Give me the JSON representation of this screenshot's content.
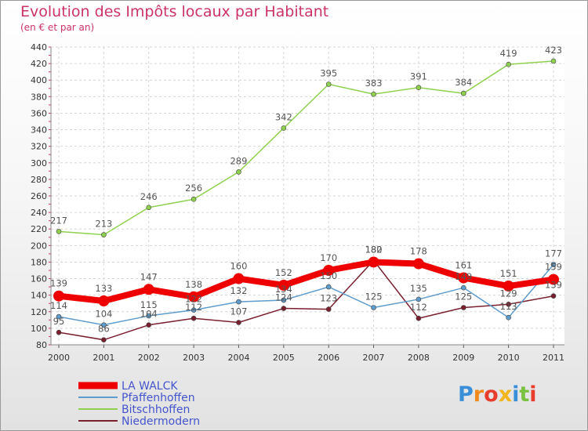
{
  "title": "Evolution des Impôts locaux par Habitant",
  "subtitle": "(en € et par an)",
  "logo": "Proxiti",
  "chart_data": {
    "type": "line",
    "title": "Evolution des Impôts locaux par Habitant",
    "subtitle": "(en € et par an)",
    "xlabel": "",
    "ylabel": "",
    "ylim": [
      80,
      440
    ],
    "ytick_step": 20,
    "x": [
      "2000",
      "2001",
      "2002",
      "2003",
      "2004",
      "2005",
      "2006",
      "2007",
      "2008",
      "2009",
      "2010",
      "2011"
    ],
    "series": [
      {
        "name": "LA WALCK",
        "color": "#ee0000",
        "values": [
          139,
          133,
          147,
          138,
          160,
          152,
          170,
          180,
          178,
          161,
          151,
          159
        ]
      },
      {
        "name": "Pfaffenhoffen",
        "color": "#5f9ccb",
        "values": [
          114,
          104,
          115,
          122,
          132,
          134,
          150,
          125,
          135,
          149,
          113,
          177
        ]
      },
      {
        "name": "Bitschhoffen",
        "color": "#8fd14f",
        "values": [
          217,
          213,
          246,
          256,
          289,
          342,
          395,
          383,
          391,
          384,
          419,
          423
        ]
      },
      {
        "name": "Niedermodern",
        "color": "#7a1f2e",
        "values": [
          95,
          86,
          104,
          112,
          107,
          124,
          123,
          182,
          112,
          125,
          129,
          139
        ]
      }
    ],
    "legend_position": "bottom-left"
  }
}
